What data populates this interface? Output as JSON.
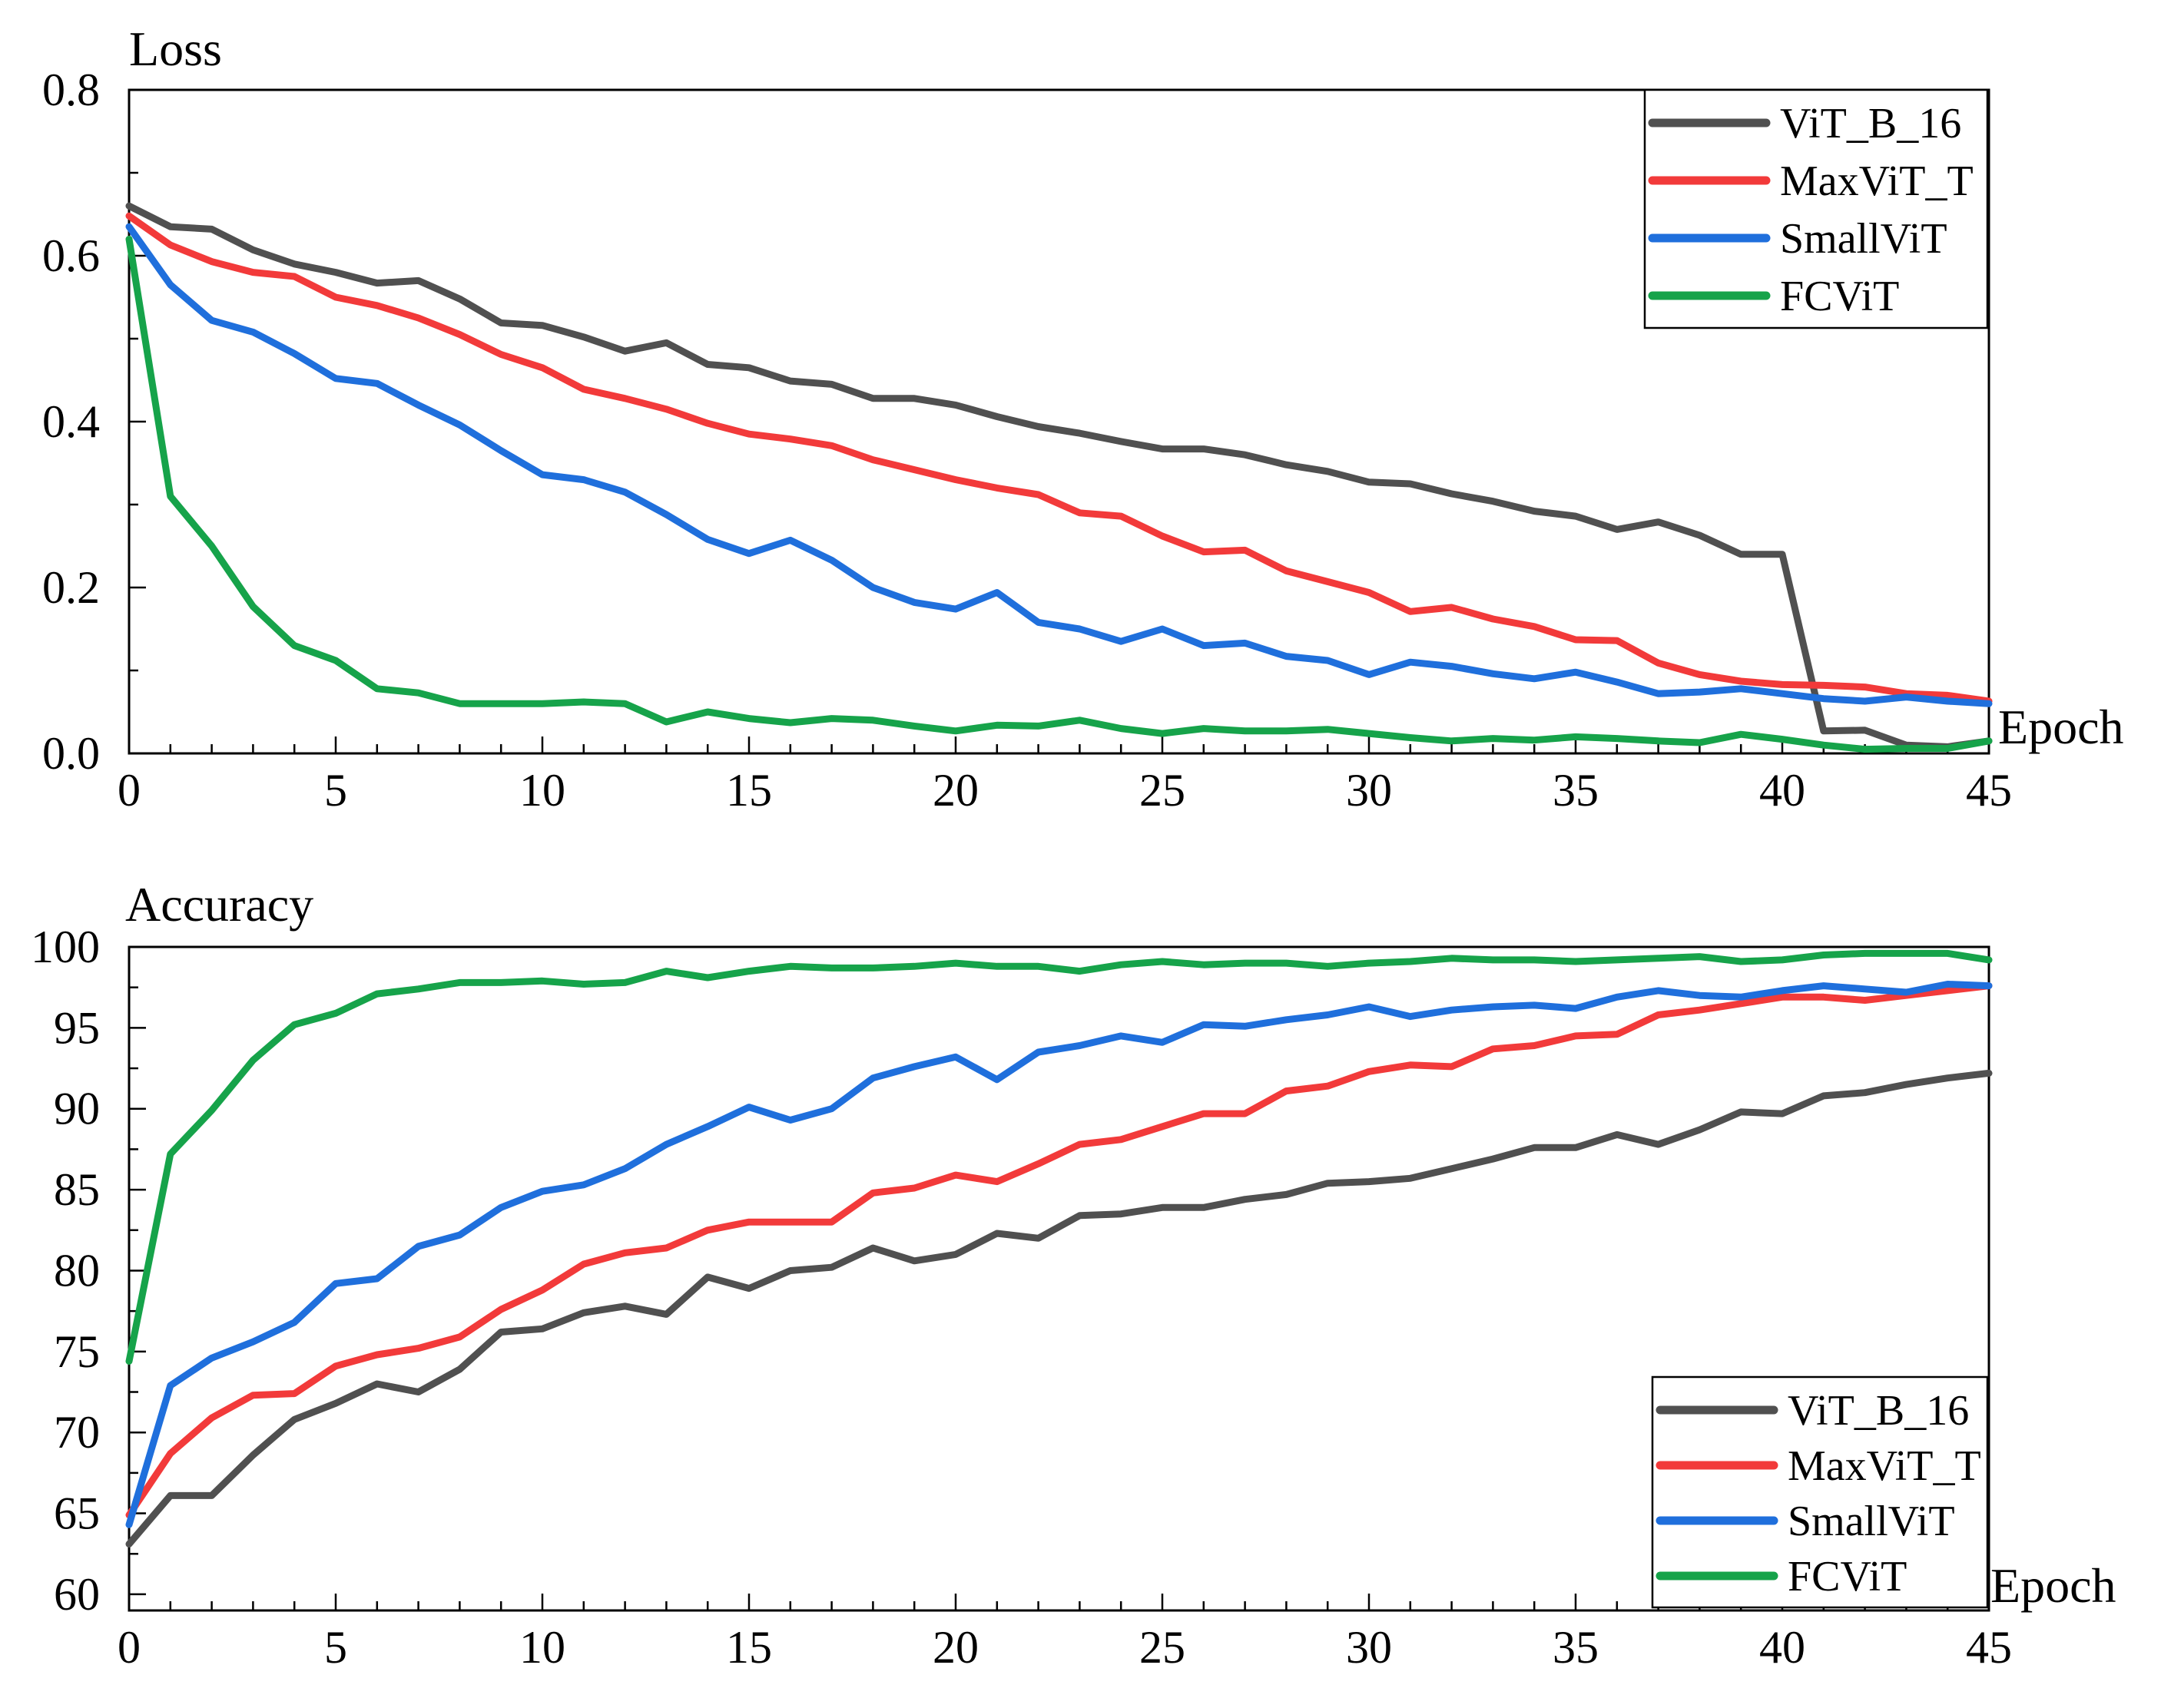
{
  "chart_data": [
    {
      "type": "line",
      "title": "",
      "ylabel": "Loss",
      "xlabel": "Epoch",
      "xlim": [
        0,
        45
      ],
      "ylim": [
        0,
        0.8
      ],
      "xticks": [
        "0",
        "5",
        "10",
        "15",
        "20",
        "25",
        "30",
        "35",
        "40",
        "45"
      ],
      "yticks": [
        "0.0",
        "0.2",
        "0.4",
        "0.6",
        "0.8"
      ],
      "grid": false,
      "legend_position": "top-right",
      "series": [
        {
          "name": "ViT_B_16",
          "color": "#505050",
          "values": [
            0.66,
            0.635,
            0.632,
            0.607,
            0.59,
            0.58,
            0.567,
            0.57,
            0.548,
            0.519,
            0.516,
            0.502,
            0.485,
            0.495,
            0.469,
            0.465,
            0.449,
            0.445,
            0.428,
            0.428,
            0.42,
            0.406,
            0.394,
            0.386,
            0.376,
            0.367,
            0.367,
            0.36,
            0.348,
            0.34,
            0.327,
            0.325,
            0.313,
            0.304,
            0.292,
            0.286,
            0.27,
            0.279,
            0.263,
            0.24,
            0.24,
            0.027,
            0.028,
            0.01,
            0.008,
            0.015
          ]
        },
        {
          "name": "MaxViT_T",
          "color": "#f23a3a",
          "values": [
            0.648,
            0.613,
            0.593,
            0.58,
            0.575,
            0.55,
            0.54,
            0.525,
            0.505,
            0.481,
            0.465,
            0.439,
            0.428,
            0.415,
            0.398,
            0.385,
            0.379,
            0.371,
            0.354,
            0.342,
            0.33,
            0.32,
            0.312,
            0.29,
            0.286,
            0.262,
            0.243,
            0.245,
            0.22,
            0.207,
            0.194,
            0.171,
            0.176,
            0.162,
            0.153,
            0.137,
            0.136,
            0.109,
            0.095,
            0.087,
            0.083,
            0.082,
            0.08,
            0.072,
            0.07,
            0.063
          ]
        },
        {
          "name": "SmallViT",
          "color": "#1f6fdc",
          "values": [
            0.635,
            0.565,
            0.522,
            0.508,
            0.482,
            0.452,
            0.446,
            0.42,
            0.396,
            0.365,
            0.336,
            0.33,
            0.315,
            0.288,
            0.258,
            0.241,
            0.257,
            0.233,
            0.2,
            0.182,
            0.174,
            0.194,
            0.158,
            0.15,
            0.135,
            0.15,
            0.13,
            0.133,
            0.117,
            0.112,
            0.095,
            0.11,
            0.105,
            0.096,
            0.09,
            0.098,
            0.086,
            0.072,
            0.074,
            0.078,
            0.072,
            0.066,
            0.063,
            0.068,
            0.063,
            0.06
          ]
        },
        {
          "name": "FCViT",
          "color": "#16a34a",
          "values": [
            0.62,
            0.31,
            0.25,
            0.177,
            0.13,
            0.112,
            0.078,
            0.073,
            0.06,
            0.06,
            0.06,
            0.062,
            0.06,
            0.038,
            0.05,
            0.042,
            0.037,
            0.042,
            0.04,
            0.033,
            0.027,
            0.034,
            0.033,
            0.04,
            0.03,
            0.024,
            0.03,
            0.027,
            0.027,
            0.029,
            0.024,
            0.019,
            0.015,
            0.018,
            0.016,
            0.02,
            0.018,
            0.015,
            0.013,
            0.023,
            0.017,
            0.01,
            0.005,
            0.006,
            0.006,
            0.015
          ]
        }
      ]
    },
    {
      "type": "line",
      "title": "",
      "ylabel": "Accuracy",
      "xlabel": "Epoch",
      "xlim": [
        0,
        45
      ],
      "ylim": [
        59,
        100
      ],
      "xticks": [
        "0",
        "5",
        "10",
        "15",
        "20",
        "25",
        "30",
        "35",
        "40",
        "45"
      ],
      "yticks": [
        "60",
        "65",
        "70",
        "75",
        "80",
        "85",
        "90",
        "95",
        "100"
      ],
      "grid": false,
      "legend_position": "bottom-right",
      "series": [
        {
          "name": "ViT_B_16",
          "color": "#505050",
          "values": [
            63.1,
            66.1,
            66.1,
            68.6,
            70.8,
            71.8,
            73.0,
            72.5,
            73.9,
            76.2,
            76.4,
            77.4,
            77.8,
            77.3,
            79.6,
            78.9,
            80.0,
            80.2,
            81.4,
            80.6,
            81.0,
            82.3,
            82.0,
            83.4,
            83.5,
            83.9,
            83.9,
            84.4,
            84.7,
            85.4,
            85.5,
            85.7,
            86.3,
            86.9,
            87.6,
            87.6,
            88.4,
            87.8,
            88.7,
            89.8,
            89.7,
            90.8,
            91.0,
            91.5,
            91.9,
            92.2
          ]
        },
        {
          "name": "MaxViT_T",
          "color": "#f23a3a",
          "values": [
            64.9,
            68.7,
            70.9,
            72.3,
            72.4,
            74.1,
            74.8,
            75.2,
            75.9,
            77.6,
            78.8,
            80.4,
            81.1,
            81.4,
            82.5,
            83.0,
            83.0,
            83.0,
            84.8,
            85.1,
            85.9,
            85.5,
            86.6,
            87.8,
            88.1,
            88.9,
            89.7,
            89.7,
            91.1,
            91.4,
            92.3,
            92.7,
            92.6,
            93.7,
            93.9,
            94.5,
            94.6,
            95.8,
            96.1,
            96.5,
            96.9,
            96.9,
            96.7,
            97.0,
            97.3,
            97.6
          ]
        },
        {
          "name": "SmallViT",
          "color": "#1f6fdc",
          "values": [
            64.3,
            72.9,
            74.6,
            75.6,
            76.8,
            79.2,
            79.5,
            81.5,
            82.2,
            83.9,
            84.9,
            85.3,
            86.3,
            87.8,
            88.9,
            90.1,
            89.3,
            90.0,
            91.9,
            92.6,
            93.2,
            91.8,
            93.5,
            93.9,
            94.5,
            94.1,
            95.2,
            95.1,
            95.5,
            95.8,
            96.3,
            95.7,
            96.1,
            96.3,
            96.4,
            96.2,
            96.9,
            97.3,
            97.0,
            96.9,
            97.3,
            97.6,
            97.4,
            97.2,
            97.7,
            97.6
          ]
        },
        {
          "name": "FCViT",
          "color": "#16a34a",
          "values": [
            74.4,
            87.2,
            89.9,
            93.0,
            95.2,
            95.9,
            97.1,
            97.4,
            97.8,
            97.8,
            97.9,
            97.7,
            97.8,
            98.5,
            98.1,
            98.5,
            98.8,
            98.7,
            98.7,
            98.8,
            99.0,
            98.8,
            98.8,
            98.5,
            98.9,
            99.1,
            98.9,
            99.0,
            99.0,
            98.8,
            99.0,
            99.1,
            99.3,
            99.2,
            99.2,
            99.1,
            99.2,
            99.3,
            99.4,
            99.1,
            99.2,
            99.5,
            99.6,
            99.6,
            99.6,
            99.2
          ]
        }
      ]
    }
  ]
}
